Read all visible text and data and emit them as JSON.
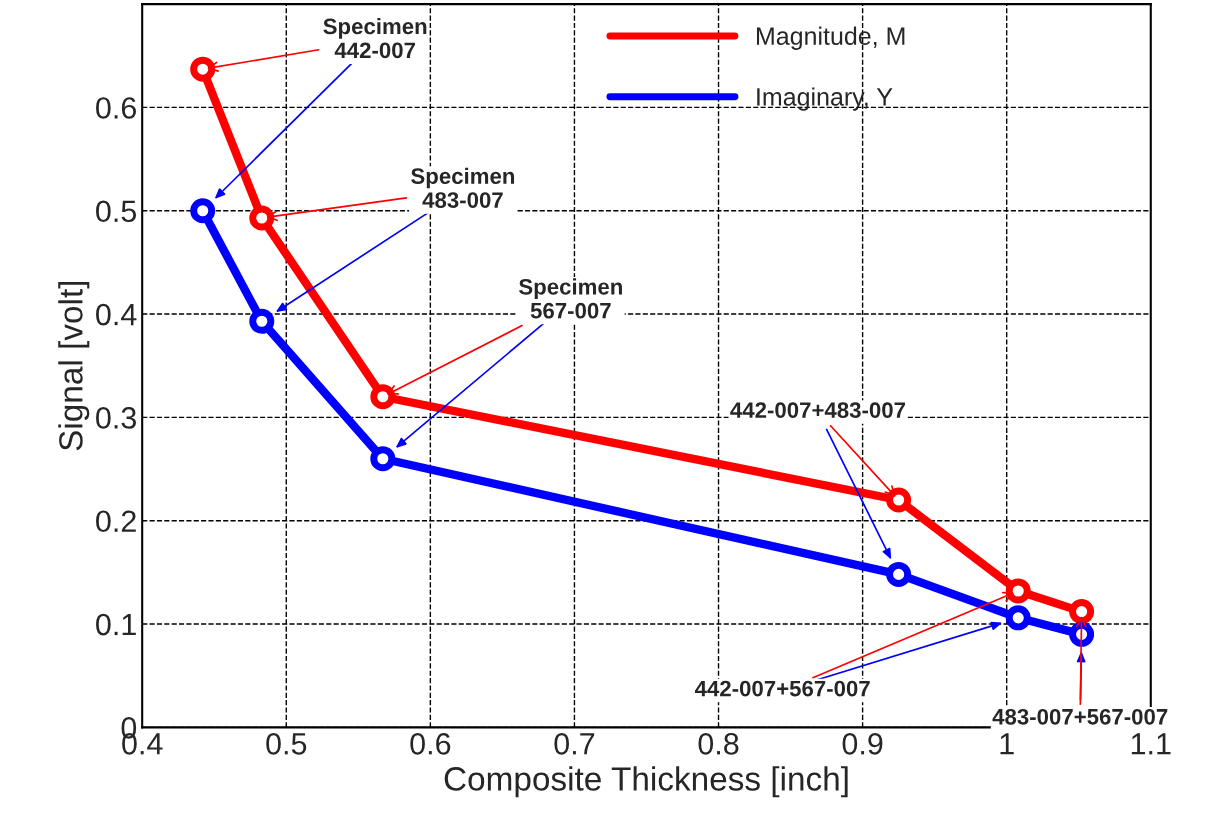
{
  "chart_data": {
    "type": "line",
    "xlabel": "Composite Thickness [inch]",
    "ylabel": "Signal [volt]",
    "xlim": [
      0.4,
      1.1
    ],
    "xticks": [
      0.4,
      0.5,
      0.6,
      0.7,
      0.8,
      0.9,
      1,
      1.1
    ],
    "ylim": [
      0,
      0.7
    ],
    "yticks": [
      0,
      0.1,
      0.2,
      0.3,
      0.4,
      0.5,
      0.6
    ],
    "x": [
      0.442,
      0.483,
      0.567,
      0.925,
      1.008,
      1.052
    ],
    "series": [
      {
        "name": "Magnitude, M",
        "color": "#ff0000",
        "values": [
          0.637,
          0.493,
          0.32,
          0.22,
          0.132,
          0.112
        ]
      },
      {
        "name": "Imaginary, Y",
        "color": "#0000ff",
        "values": [
          0.5,
          0.393,
          0.26,
          0.148,
          0.106,
          0.09
        ]
      }
    ],
    "marker": "circle",
    "line_style": "solid",
    "grid": true,
    "legend": "top right",
    "annotations": [
      {
        "text": "Specimen\n442-007",
        "x": 0.442,
        "y": 0.637
      },
      {
        "text": "Specimen\n483-007",
        "x": 0.483,
        "y": 0.493
      },
      {
        "text": "Specimen\n567-007",
        "x": 0.567,
        "y": 0.32
      },
      {
        "text": "442-007+483-007",
        "x": 0.925,
        "y": 0.22
      },
      {
        "text": "442-007+567-007",
        "x": 1.008,
        "y": 0.132
      },
      {
        "text": "483-007+567-007",
        "x": 1.052,
        "y": 0.112
      }
    ]
  }
}
